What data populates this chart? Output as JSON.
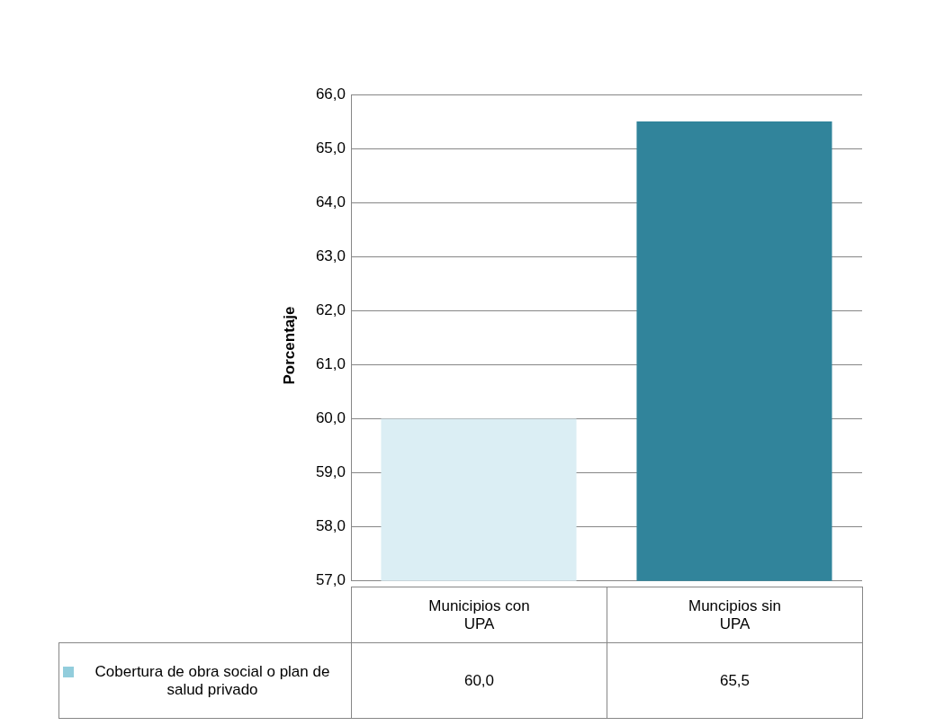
{
  "chart_data": {
    "type": "bar",
    "ylabel": "Porcentaje",
    "categories": [
      "Municipios con UPA",
      "Muncipios sin UPA"
    ],
    "series": [
      {
        "name": "Cobertura de obra social o plan de salud privado",
        "color": "#92cddc",
        "colors": [
          "#dbeef4",
          "#31849b"
        ],
        "values": [
          60.0,
          65.5
        ],
        "value_labels": [
          "60,0",
          "65,5"
        ]
      }
    ],
    "ylim": [
      57,
      66
    ],
    "yticks": [
      {
        "value": 57,
        "label": "57,0"
      },
      {
        "value": 58,
        "label": "58,0"
      },
      {
        "value": 59,
        "label": "59,0"
      },
      {
        "value": 60,
        "label": "60,0"
      },
      {
        "value": 61,
        "label": "61,0"
      },
      {
        "value": 62,
        "label": "62,0"
      },
      {
        "value": 63,
        "label": "63,0"
      },
      {
        "value": 64,
        "label": "64,0"
      },
      {
        "value": 65,
        "label": "65,0"
      },
      {
        "value": 66,
        "label": "66,0"
      }
    ],
    "grid": true,
    "legend": "bottom"
  }
}
